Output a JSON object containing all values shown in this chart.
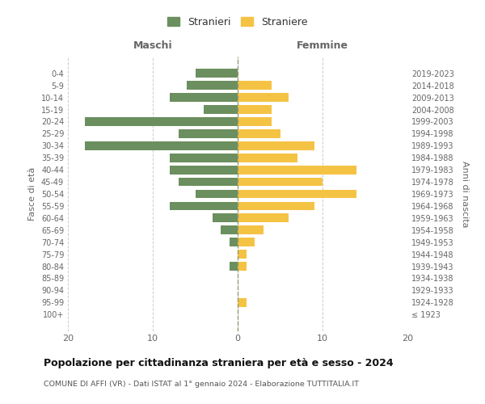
{
  "age_groups": [
    "100+",
    "95-99",
    "90-94",
    "85-89",
    "80-84",
    "75-79",
    "70-74",
    "65-69",
    "60-64",
    "55-59",
    "50-54",
    "45-49",
    "40-44",
    "35-39",
    "30-34",
    "25-29",
    "20-24",
    "15-19",
    "10-14",
    "5-9",
    "0-4"
  ],
  "birth_years": [
    "≤ 1923",
    "1924-1928",
    "1929-1933",
    "1934-1938",
    "1939-1943",
    "1944-1948",
    "1949-1953",
    "1954-1958",
    "1959-1963",
    "1964-1968",
    "1969-1973",
    "1974-1978",
    "1979-1983",
    "1984-1988",
    "1989-1993",
    "1994-1998",
    "1999-2003",
    "2004-2008",
    "2009-2013",
    "2014-2018",
    "2019-2023"
  ],
  "maschi": [
    0,
    0,
    0,
    0,
    1,
    0,
    1,
    2,
    3,
    8,
    5,
    7,
    8,
    8,
    18,
    7,
    18,
    4,
    8,
    6,
    5
  ],
  "femmine": [
    0,
    1,
    0,
    0,
    1,
    1,
    2,
    3,
    6,
    9,
    14,
    10,
    14,
    7,
    9,
    5,
    4,
    4,
    6,
    4,
    0
  ],
  "color_maschi": "#6b8f5e",
  "color_femmine": "#f5c344",
  "xlim": 20,
  "title": "Popolazione per cittadinanza straniera per età e sesso - 2024",
  "subtitle": "COMUNE DI AFFI (VR) - Dati ISTAT al 1° gennaio 2024 - Elaborazione TUTTITALIA.IT",
  "ylabel_left": "Fasce di età",
  "ylabel_right": "Anni di nascita",
  "label_maschi": "Stranieri",
  "label_femmine": "Straniere",
  "header_left": "Maschi",
  "header_right": "Femmine",
  "bg_color": "#ffffff",
  "grid_color": "#cccccc"
}
